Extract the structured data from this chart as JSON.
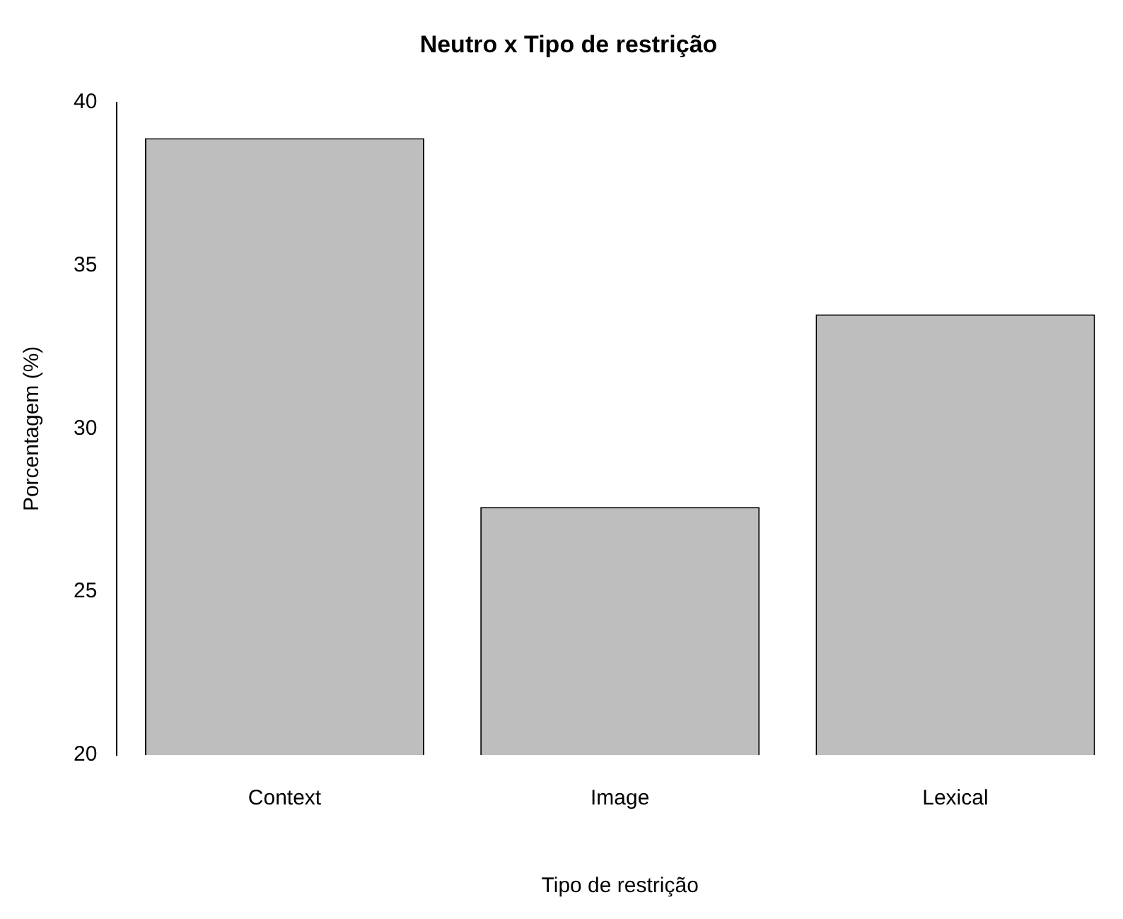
{
  "chart_data": {
    "type": "bar",
    "title": "Neutro x Tipo de restrição",
    "xlabel": "Tipo de restrição",
    "ylabel": "Porcentagem (%)",
    "categories": [
      "Context",
      "Image",
      "Lexical"
    ],
    "values": [
      38.9,
      27.6,
      33.5
    ],
    "color": "#bebebe",
    "ylim": [
      20,
      40
    ],
    "yticks": [
      20,
      25,
      30,
      35,
      40
    ],
    "grid": false,
    "legend": false
  }
}
